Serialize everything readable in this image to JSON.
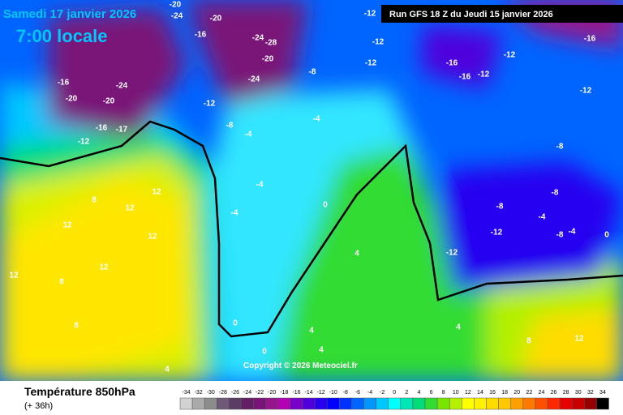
{
  "header": {
    "date": "Samedi 17 janvier 2026",
    "time": "7:00 locale",
    "run": "Run GFS 18 Z du Jeudi 15 janvier 2026"
  },
  "footer": {
    "title": "Température 850hPa",
    "lead": "(+ 36h)",
    "copyright": "Copyright © 2026 Meteociel.fr"
  },
  "scale": {
    "values": [
      -34,
      -32,
      -30,
      -28,
      -26,
      -24,
      -22,
      -20,
      -18,
      -16,
      -14,
      -12,
      -10,
      -8,
      -6,
      -4,
      -2,
      0,
      2,
      4,
      6,
      8,
      10,
      12,
      14,
      16,
      18,
      20,
      22,
      24,
      26,
      28,
      30,
      32,
      34
    ],
    "colors": [
      "#d2d2d2",
      "#aaaaaa",
      "#8c8c8c",
      "#6e5a78",
      "#5a3c64",
      "#641e64",
      "#781478",
      "#96148c",
      "#b400b4",
      "#7800c8",
      "#5000dc",
      "#2800f0",
      "#0000ff",
      "#0032ff",
      "#0064ff",
      "#0096ff",
      "#00c8ff",
      "#00ffff",
      "#00e6b4",
      "#00dc78",
      "#32dc32",
      "#78e600",
      "#b4f000",
      "#ffff00",
      "#fff000",
      "#ffdc00",
      "#ffc800",
      "#ffa000",
      "#ff7800",
      "#ff5000",
      "#ff2800",
      "#e60000",
      "#c80000",
      "#960000",
      "#000000"
    ]
  },
  "contour_labels": [
    "-16",
    "-24",
    "-20",
    "-20",
    "-16",
    "-12",
    "-24",
    "-28",
    "-20",
    "-16",
    "-24",
    "-12",
    "-8",
    "-12",
    "-12",
    "-16",
    "-16",
    "-12",
    "-12",
    "-16",
    "-20",
    "-20",
    "-24",
    "-12",
    "-17",
    "-12",
    "-8",
    "-8",
    "-4",
    "-4",
    "-4",
    "-4",
    "0",
    "0",
    "4",
    "4",
    "4",
    "8",
    "8",
    "12",
    "12",
    "12",
    "12",
    "8",
    "12",
    "4",
    "0",
    "-8",
    "-4",
    "-12",
    "-4",
    "-8",
    "-8",
    "12",
    "12",
    "8",
    "4",
    "0",
    "-12"
  ]
}
